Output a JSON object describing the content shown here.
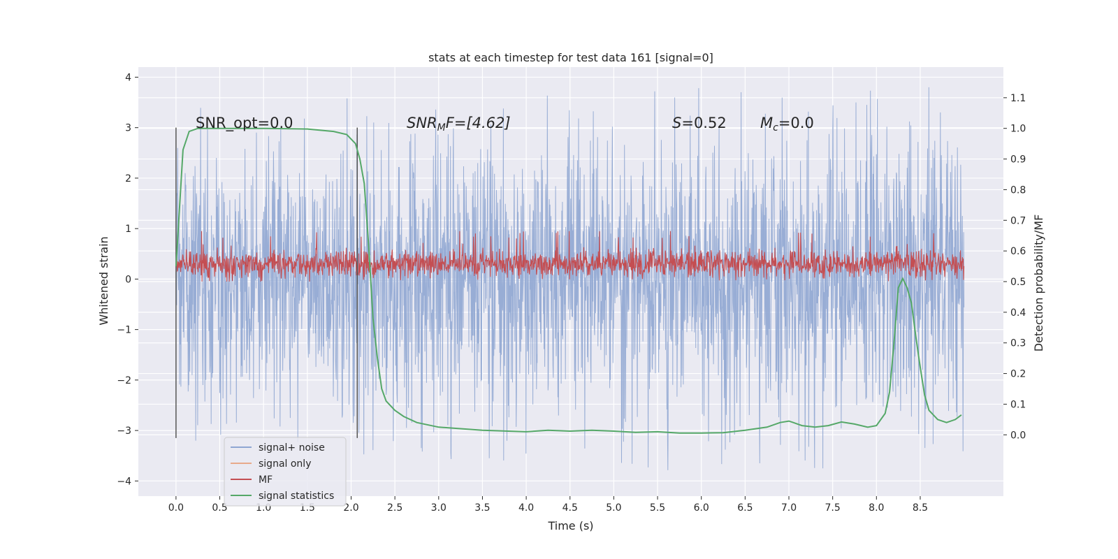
{
  "chart_data": {
    "type": "line",
    "title": "stats at each timestep for test data 161 [signal=0]",
    "xlabel": "Time (s)",
    "ylabel": "Whitened strain",
    "y2label": "Detection probability/MF",
    "xlim": [
      -0.43,
      9.45
    ],
    "ylim": [
      -4.3,
      4.2
    ],
    "y2lim": [
      -0.2,
      1.2
    ],
    "x_ticks": [
      "0.0",
      "0.5",
      "1.0",
      "1.5",
      "2.0",
      "2.5",
      "3.0",
      "3.5",
      "4.0",
      "4.5",
      "5.0",
      "5.5",
      "6.0",
      "6.5",
      "7.0",
      "7.5",
      "8.0",
      "8.5"
    ],
    "y_ticks": [
      "−4",
      "−3",
      "−2",
      "−1",
      "0",
      "1",
      "2",
      "3",
      "4"
    ],
    "y2_ticks": [
      "0.0",
      "0.1",
      "0.2",
      "0.3",
      "0.4",
      "0.5",
      "0.6",
      "0.7",
      "0.8",
      "0.9",
      "1.0",
      "1.1"
    ],
    "annotations": {
      "snr_opt": "SNR_opt=0.0",
      "snr_mf_main": "SNR",
      "snr_mf_sub": "M",
      "snr_mf_rest": "F=[4.62]",
      "s_var": "S",
      "s_val": "=0.52",
      "mc_var": "M",
      "mc_sub": "c",
      "mc_val": "=0.0"
    },
    "vertical_markers": [
      0.0,
      2.07
    ],
    "series": [
      {
        "name": "signal+ noise",
        "color": "#8fa6d2",
        "axis": "left",
        "x_range": [
          0,
          9.0
        ],
        "amplitude_typical": 1.5,
        "amplitude_peak": 3.8
      },
      {
        "name": "signal only",
        "color": "#e8a98a",
        "axis": "left",
        "values": []
      },
      {
        "name": "MF",
        "color": "#c44e52",
        "axis": "left",
        "x_range": [
          0,
          9.0
        ],
        "center": 0.3,
        "amplitude": 0.3
      },
      {
        "name": "signal statistics",
        "color": "#55a868",
        "axis": "right",
        "x": [
          0.0,
          0.08,
          0.15,
          0.25,
          0.5,
          1.0,
          1.5,
          1.8,
          1.95,
          2.05,
          2.1,
          2.15,
          2.2,
          2.25,
          2.3,
          2.35,
          2.4,
          2.5,
          2.6,
          2.75,
          3.0,
          3.25,
          3.5,
          4.0,
          4.25,
          4.5,
          4.75,
          5.0,
          5.25,
          5.5,
          5.75,
          6.0,
          6.25,
          6.5,
          6.75,
          6.9,
          7.0,
          7.05,
          7.15,
          7.3,
          7.45,
          7.6,
          7.75,
          7.9,
          8.0,
          8.1,
          8.15,
          8.2,
          8.25,
          8.3,
          8.35,
          8.4,
          8.45,
          8.5,
          8.55,
          8.6,
          8.7,
          8.8,
          8.9,
          8.97
        ],
        "y": [
          0.55,
          0.93,
          0.99,
          1.0,
          1.0,
          1.0,
          0.998,
          0.99,
          0.98,
          0.95,
          0.9,
          0.82,
          0.62,
          0.38,
          0.25,
          0.15,
          0.11,
          0.08,
          0.06,
          0.04,
          0.025,
          0.02,
          0.015,
          0.01,
          0.015,
          0.012,
          0.015,
          0.012,
          0.008,
          0.01,
          0.006,
          0.006,
          0.007,
          0.015,
          0.025,
          0.04,
          0.045,
          0.04,
          0.03,
          0.025,
          0.03,
          0.042,
          0.035,
          0.025,
          0.03,
          0.07,
          0.14,
          0.3,
          0.48,
          0.51,
          0.48,
          0.43,
          0.32,
          0.22,
          0.13,
          0.08,
          0.05,
          0.04,
          0.05,
          0.065
        ]
      }
    ]
  }
}
